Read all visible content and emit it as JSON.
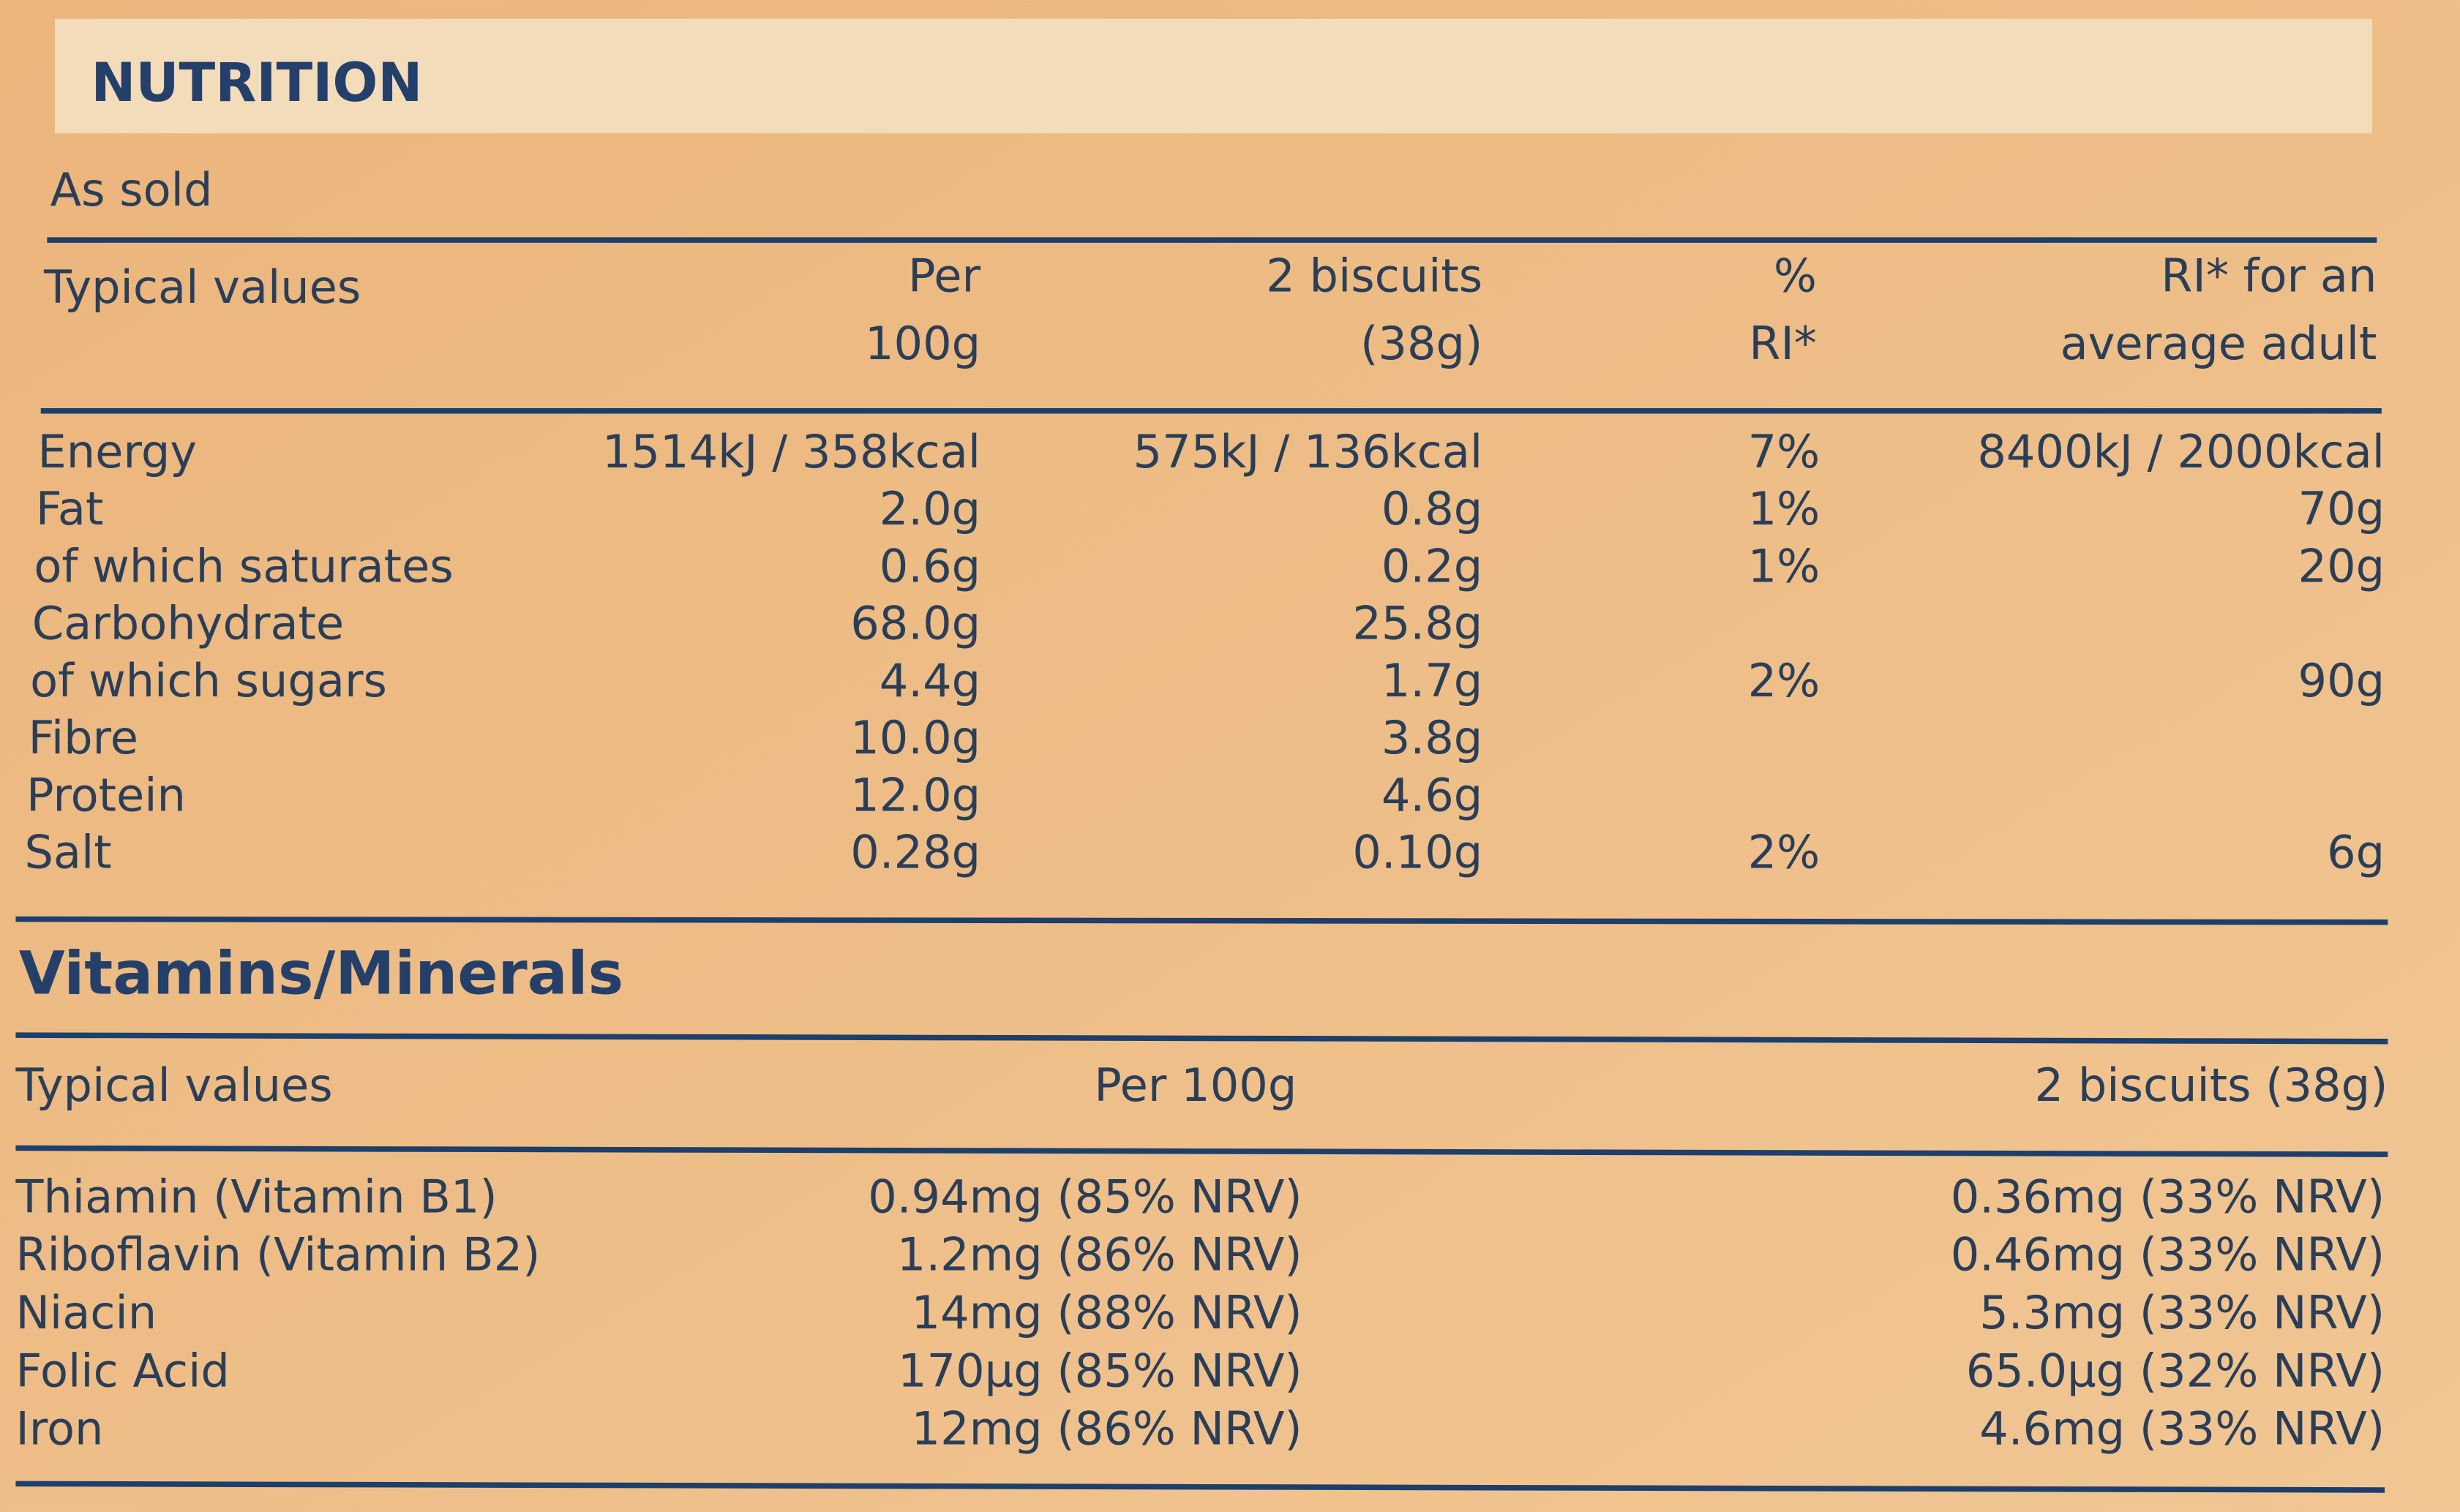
{
  "header": {
    "title": "NUTRITION",
    "subtitle": "As sold"
  },
  "nutrition_table": {
    "columns": [
      [
        "Typical values"
      ],
      [
        "Per",
        "100g"
      ],
      [
        "2 biscuits",
        "(38g)"
      ],
      [
        "%",
        "RI*"
      ],
      [
        "RI* for an",
        "average adult"
      ]
    ],
    "rows": [
      [
        "Energy",
        "1514kJ / 358kcal",
        "575kJ / 136kcal",
        "7%",
        "8400kJ / 2000kcal"
      ],
      [
        "Fat",
        "2.0g",
        "0.8g",
        "1%",
        "70g"
      ],
      [
        "of which saturates",
        "0.6g",
        "0.2g",
        "1%",
        "20g"
      ],
      [
        "Carbohydrate",
        "68.0g",
        "25.8g",
        null,
        null
      ],
      [
        "of which sugars",
        "4.4g",
        "1.7g",
        "2%",
        "90g"
      ],
      [
        "Fibre",
        "10.0g",
        "3.8g",
        null,
        null
      ],
      [
        "Protein",
        "12.0g",
        "4.6g",
        null,
        null
      ],
      [
        "Salt",
        "0.28g",
        "0.10g",
        "2%",
        "6g"
      ]
    ]
  },
  "vitamins_table": {
    "title": "Vitamins/Minerals",
    "columns": [
      "Typical values",
      "Per 100g",
      "2 biscuits (38g)"
    ],
    "rows": [
      [
        "Thiamin (Vitamin B1)",
        "0.94mg (85% NRV)",
        "0.36mg (33% NRV)"
      ],
      [
        "Riboflavin (Vitamin B2)",
        "1.2mg (86% NRV)",
        "0.46mg (33% NRV)"
      ],
      [
        "Niacin",
        "14mg (88% NRV)",
        "5.3mg (33% NRV)"
      ],
      [
        "Folic Acid",
        "170µg (85% NRV)",
        "65.0µg (32% NRV)"
      ],
      [
        "Iron",
        "12mg (86% NRV)",
        "4.6mg (33% NRV)"
      ]
    ]
  }
}
